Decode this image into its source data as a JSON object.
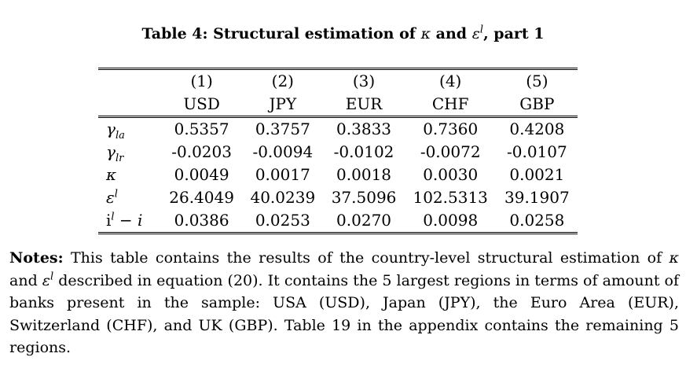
{
  "caption": {
    "prefix": "Table 4: Structural estimation of",
    "kappa": "κ",
    "and": "and",
    "epsilon": "ε",
    "epsilon_sup": "l",
    "suffix": ", part 1"
  },
  "table": {
    "column_numbers": [
      "(1)",
      "(2)",
      "(3)",
      "(4)",
      "(5)"
    ],
    "column_currencies": [
      "USD",
      "JPY",
      "EUR",
      "CHF",
      "GBP"
    ],
    "rows": [
      {
        "label_main": "γ",
        "label_sub": "la",
        "label_sup": "",
        "values": [
          "0.5357",
          "0.3757",
          "0.3833",
          "0.7360",
          "0.4208"
        ]
      },
      {
        "label_main": "γ",
        "label_sub": "lr",
        "label_sup": "",
        "values": [
          "-0.0203",
          "-0.0094",
          "-0.0102",
          "-0.0072",
          "-0.0107"
        ]
      },
      {
        "label_main": "κ",
        "label_sub": "",
        "label_sup": "",
        "values": [
          "0.0049",
          "0.0017",
          "0.0018",
          "0.0030",
          "0.0021"
        ]
      },
      {
        "label_main": "ε",
        "label_sub": "",
        "label_sup": "l",
        "values": [
          "26.4049",
          "40.0239",
          "37.5096",
          "102.5313",
          "39.1907"
        ]
      },
      {
        "label_main": "i",
        "label_sub": "",
        "label_sup": "l",
        "label_tail": " − i",
        "values": [
          "0.0386",
          "0.0253",
          "0.0270",
          "0.0098",
          "0.0258"
        ]
      }
    ]
  },
  "notes": {
    "heading": "Notes:",
    "part1": " This table contains the results of the country-level structural estimation of ",
    "kappa": "κ",
    "part2": " and ",
    "epsilon": "ε",
    "epsilon_sup": "l",
    "part3": " described in equation (20). It contains the 5 largest regions in terms of amount of banks present in the sample: USA (USD), Japan (JPY), the Euro Area (EUR), Switzerland (CHF), and UK (GBP). Table 19 in the appendix contains the remaining 5 regions."
  }
}
